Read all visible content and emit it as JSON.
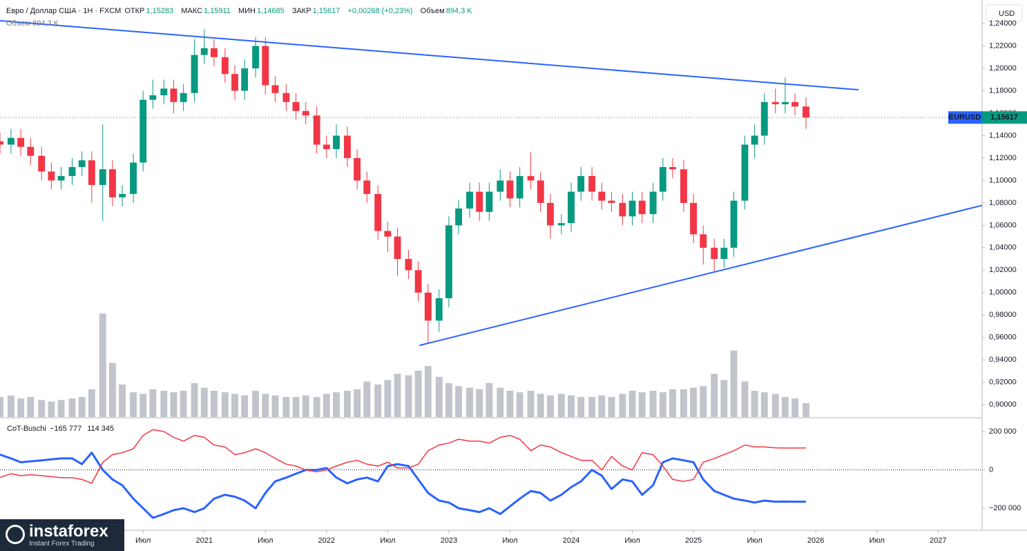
{
  "header": {
    "symbol": "Евро / Доллар США · 1H · FXCM",
    "open_label": "ОТКР",
    "open": "1,15283",
    "high_label": "МАКС",
    "high": "1,15911",
    "low_label": "МИН",
    "low": "1,14685",
    "close_label": "ЗАКР",
    "close": "1,15617",
    "change": "+0,00268 (+0,23%)",
    "volume_label": "Объем",
    "volume": "894,3 K",
    "volume_legend": "Объем  894,3 K",
    "currency": "USD"
  },
  "logo": {
    "name": "instaforex",
    "tagline": "Instant Forex Trading"
  },
  "chart_data": [
    {
      "type": "candlestick",
      "x": [
        2019.33,
        2019.42,
        2019.5,
        2019.58,
        2019.67,
        2019.75,
        2019.83,
        2019.92,
        2020.0,
        2020.08,
        2020.17,
        2020.25,
        2020.33,
        2020.42,
        2020.5,
        2020.58,
        2020.67,
        2020.75,
        2020.83,
        2020.92,
        2021.0,
        2021.08,
        2021.17,
        2021.25,
        2021.33,
        2021.42,
        2021.5,
        2021.58,
        2021.67,
        2021.75,
        2021.83,
        2021.92,
        2022.0,
        2022.08,
        2022.17,
        2022.25,
        2022.33,
        2022.42,
        2022.5,
        2022.58,
        2022.67,
        2022.75,
        2022.83,
        2022.92,
        2023.0,
        2023.08,
        2023.17,
        2023.25,
        2023.33,
        2023.42,
        2023.5,
        2023.58,
        2023.67,
        2023.75,
        2023.83,
        2023.92,
        2024.0,
        2024.08,
        2024.17,
        2024.25,
        2024.33,
        2024.42,
        2024.5,
        2024.58,
        2024.67,
        2024.75,
        2024.83,
        2024.92,
        2025.0,
        2025.08,
        2025.17,
        2025.25,
        2025.33,
        2025.42,
        2025.5,
        2025.58,
        2025.67,
        2025.75,
        2025.83,
        2025.92
      ],
      "open": [
        1.135,
        1.132,
        1.138,
        1.13,
        1.122,
        1.108,
        1.1,
        1.104,
        1.112,
        1.118,
        1.096,
        1.11,
        1.085,
        1.088,
        1.116,
        1.172,
        1.176,
        1.182,
        1.17,
        1.178,
        1.212,
        1.218,
        1.21,
        1.195,
        1.18,
        1.2,
        1.22,
        1.185,
        1.178,
        1.17,
        1.162,
        1.158,
        1.132,
        1.128,
        1.14,
        1.12,
        1.1,
        1.088,
        1.055,
        1.05,
        1.03,
        1.02,
        1.0,
        0.975,
        0.995,
        1.06,
        1.075,
        1.09,
        1.072,
        1.09,
        1.1,
        1.084,
        1.104,
        1.1,
        1.08,
        1.06,
        1.062,
        1.09,
        1.104,
        1.09,
        1.082,
        1.08,
        1.068,
        1.082,
        1.07,
        1.09,
        1.112,
        1.11,
        1.08,
        1.052,
        1.04,
        1.03,
        1.04,
        1.082,
        1.132,
        1.14,
        1.17,
        1.168,
        1.17,
        1.166
      ],
      "high": [
        1.143,
        1.146,
        1.146,
        1.138,
        1.13,
        1.116,
        1.112,
        1.12,
        1.126,
        1.126,
        1.15,
        1.118,
        1.096,
        1.124,
        1.18,
        1.19,
        1.19,
        1.19,
        1.186,
        1.226,
        1.235,
        1.226,
        1.218,
        1.203,
        1.208,
        1.228,
        1.228,
        1.193,
        1.186,
        1.178,
        1.17,
        1.166,
        1.14,
        1.15,
        1.148,
        1.128,
        1.108,
        1.096,
        1.063,
        1.058,
        1.038,
        1.028,
        1.008,
        1.003,
        1.068,
        1.083,
        1.098,
        1.098,
        1.098,
        1.11,
        1.108,
        1.112,
        1.125,
        1.108,
        1.088,
        1.07,
        1.098,
        1.112,
        1.112,
        1.098,
        1.09,
        1.088,
        1.09,
        1.09,
        1.098,
        1.12,
        1.12,
        1.118,
        1.088,
        1.06,
        1.048,
        1.048,
        1.09,
        1.14,
        1.15,
        1.178,
        1.182,
        1.192,
        1.178,
        1.174
      ],
      "low": [
        1.124,
        1.124,
        1.122,
        1.114,
        1.1,
        1.092,
        1.092,
        1.096,
        1.104,
        1.08,
        1.064,
        1.077,
        1.077,
        1.08,
        1.108,
        1.164,
        1.168,
        1.16,
        1.162,
        1.17,
        1.204,
        1.202,
        1.187,
        1.172,
        1.172,
        1.192,
        1.177,
        1.17,
        1.162,
        1.154,
        1.15,
        1.124,
        1.12,
        1.12,
        1.112,
        1.092,
        1.08,
        1.047,
        1.036,
        1.015,
        1.012,
        0.992,
        0.955,
        0.965,
        0.987,
        1.052,
        1.067,
        1.064,
        1.064,
        1.082,
        1.076,
        1.076,
        1.092,
        1.072,
        1.048,
        1.052,
        1.054,
        1.082,
        1.082,
        1.074,
        1.072,
        1.06,
        1.06,
        1.062,
        1.062,
        1.082,
        1.102,
        1.072,
        1.044,
        1.025,
        1.018,
        1.022,
        1.032,
        1.074,
        1.12,
        1.132,
        1.16,
        1.16,
        1.158,
        1.146
      ],
      "close": [
        1.132,
        1.138,
        1.13,
        1.122,
        1.108,
        1.1,
        1.104,
        1.112,
        1.118,
        1.096,
        1.11,
        1.085,
        1.088,
        1.116,
        1.172,
        1.176,
        1.182,
        1.17,
        1.178,
        1.212,
        1.218,
        1.21,
        1.195,
        1.18,
        1.2,
        1.22,
        1.185,
        1.178,
        1.17,
        1.162,
        1.158,
        1.132,
        1.128,
        1.14,
        1.12,
        1.1,
        1.088,
        1.055,
        1.05,
        1.03,
        1.02,
        1.0,
        0.975,
        0.995,
        1.06,
        1.075,
        1.09,
        1.072,
        1.09,
        1.1,
        1.084,
        1.104,
        1.1,
        1.08,
        1.06,
        1.062,
        1.09,
        1.104,
        1.09,
        1.082,
        1.08,
        1.068,
        1.082,
        1.07,
        1.09,
        1.112,
        1.11,
        1.08,
        1.052,
        1.04,
        1.03,
        1.04,
        1.082,
        1.132,
        1.14,
        1.17,
        1.168,
        1.17,
        1.166,
        1.15617
      ],
      "volume": [
        1300,
        1400,
        1200,
        1300,
        1100,
        1000,
        1100,
        1200,
        1300,
        1800,
        6700,
        3500,
        2100,
        1600,
        1500,
        1800,
        1700,
        1600,
        1700,
        2200,
        1900,
        1700,
        1600,
        1500,
        1400,
        1700,
        1500,
        1400,
        1300,
        1300,
        1400,
        1300,
        1500,
        1600,
        1700,
        1800,
        2300,
        2100,
        2400,
        2800,
        2700,
        3000,
        3300,
        2600,
        2200,
        2000,
        1900,
        1800,
        2200,
        1900,
        1700,
        1600,
        1700,
        1500,
        1400,
        1500,
        1400,
        1300,
        1300,
        1400,
        1300,
        1500,
        1700,
        1600,
        1700,
        1600,
        1800,
        1800,
        1900,
        2000,
        2800,
        2400,
        4300,
        2300,
        1700,
        1600,
        1500,
        1300,
        1200,
        894.3
      ],
      "volume_lim": [
        0,
        6700
      ],
      "up_color": "#089981",
      "down_color": "#f23645",
      "volume_color": "#b2b5be",
      "symbol_label": "EURUSD",
      "last_label": "1,15617",
      "tag_color": "#2962ff",
      "trendlines": [
        {
          "x": [
            2019.33,
            2026.35
          ],
          "y": [
            1.2425,
            1.1809
          ],
          "color": "#2962ff"
        },
        {
          "x": [
            2022.76,
            2027.36
          ],
          "y": [
            0.9529,
            1.0778
          ],
          "color": "#2962ff"
        }
      ],
      "xlim": [
        2019.33,
        2027.36
      ],
      "xticks": [
        {
          "value": 2020.5,
          "label": "Июл"
        },
        2021,
        {
          "value": 2021.5,
          "label": "Июл"
        },
        2022,
        {
          "value": 2022.5,
          "label": "Июл"
        },
        2023,
        {
          "value": 2023.5,
          "label": "Июл"
        },
        2024,
        {
          "value": 2024.5,
          "label": "Июл"
        },
        2025,
        {
          "value": 2025.5,
          "label": "Июл"
        },
        2026,
        {
          "value": 2026.5,
          "label": "Июл"
        },
        2027
      ],
      "ylim": [
        0.889,
        1.261
      ],
      "yticks": [
        {
          "value": 0.9,
          "label": "0,90000"
        },
        {
          "value": 0.92,
          "label": "0,92000"
        },
        {
          "value": 0.94,
          "label": "0,94000"
        },
        {
          "value": 0.96,
          "label": "0,96000"
        },
        {
          "value": 0.98,
          "label": "0,98000"
        },
        {
          "value": 1.0,
          "label": "1,00000"
        },
        {
          "value": 1.02,
          "label": "1,02000"
        },
        {
          "value": 1.04,
          "label": "1,04000"
        },
        {
          "value": 1.06,
          "label": "1,06000"
        },
        {
          "value": 1.08,
          "label": "1,08000"
        },
        {
          "value": 1.1,
          "label": "1,10000"
        },
        {
          "value": 1.12,
          "label": "1,12000"
        },
        {
          "value": 1.14,
          "label": "1,14000"
        },
        {
          "value": 1.16,
          "label": "1,16000"
        },
        {
          "value": 1.18,
          "label": "1,18000"
        },
        {
          "value": 1.2,
          "label": "1,20000"
        },
        {
          "value": 1.22,
          "label": "1,22000"
        },
        {
          "value": 1.24,
          "label": "1,24000"
        }
      ],
      "grid": false
    },
    {
      "type": "line",
      "title": "CoT-Buschi",
      "series": [
        {
          "color": "#2962ff",
          "width": 3,
          "last_value_label": "−165 777",
          "values": [
            80000,
            60000,
            40000,
            45000,
            50000,
            55000,
            60000,
            60000,
            30000,
            90000,
            0,
            -50000,
            -80000,
            -150000,
            -200000,
            -250000,
            -230000,
            -210000,
            -200000,
            -220000,
            -200000,
            -150000,
            -130000,
            -140000,
            -160000,
            -200000,
            -120000,
            -60000,
            -40000,
            -20000,
            0,
            0,
            10000,
            -40000,
            -70000,
            -50000,
            -40000,
            -60000,
            20000,
            30000,
            20000,
            -50000,
            -120000,
            -160000,
            -170000,
            -200000,
            -210000,
            -220000,
            -200000,
            -230000,
            -190000,
            -150000,
            -110000,
            -120000,
            -160000,
            -130000,
            -90000,
            -60000,
            0,
            -30000,
            -100000,
            -50000,
            -60000,
            -130000,
            -80000,
            40000,
            60000,
            50000,
            40000,
            -50000,
            -110000,
            -130000,
            -150000,
            -160000,
            -170000,
            -160000,
            -166000,
            -165000,
            -166000,
            -165777
          ]
        },
        {
          "color": "#f23645",
          "width": 1.5,
          "last_value_label": "114 345",
          "values": [
            -40000,
            -20000,
            -30000,
            -25000,
            -30000,
            -35000,
            -40000,
            -40000,
            -50000,
            -70000,
            40000,
            80000,
            90000,
            110000,
            180000,
            210000,
            200000,
            170000,
            150000,
            180000,
            170000,
            130000,
            120000,
            80000,
            90000,
            110000,
            90000,
            60000,
            30000,
            20000,
            0,
            -10000,
            0,
            20000,
            40000,
            50000,
            30000,
            20000,
            40000,
            10000,
            10000,
            30000,
            100000,
            130000,
            140000,
            160000,
            150000,
            150000,
            140000,
            170000,
            180000,
            160000,
            100000,
            130000,
            120000,
            90000,
            70000,
            50000,
            50000,
            0,
            70000,
            20000,
            0,
            90000,
            80000,
            20000,
            -50000,
            -60000,
            -50000,
            40000,
            60000,
            80000,
            100000,
            130000,
            120000,
            120000,
            115000,
            114000,
            114000,
            114345
          ]
        }
      ],
      "ylim": [
        -315000,
        265000
      ],
      "yticks": [
        {
          "value": 200000,
          "label": "200 000"
        },
        0,
        {
          "value": -200000,
          "label": "−200 000"
        }
      ],
      "grid": false
    }
  ]
}
